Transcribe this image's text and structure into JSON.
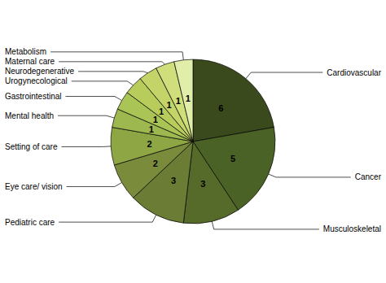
{
  "chart_data": {
    "type": "pie",
    "categories": [
      "Cardiovascular",
      "Cancer",
      "Musculoskeletal",
      "Pediatric care",
      "Eye care/ vision",
      "Setting of care",
      "Mental health",
      "Gastrointestinal",
      "Urogynecological",
      "Neurodegenerative",
      "Maternal care",
      "Metabolism"
    ],
    "values": [
      6,
      5,
      3,
      3,
      2,
      2,
      1,
      1,
      1,
      1,
      1,
      1
    ],
    "colors": [
      "#3a4a1c",
      "#4b6226",
      "#566b2a",
      "#6b7c35",
      "#7a8c3c",
      "#8fa645",
      "#9db84e",
      "#aac455",
      "#b8cc5c",
      "#c4d468",
      "#d0de7c",
      "#e0eeaa"
    ],
    "data_labels": true
  }
}
